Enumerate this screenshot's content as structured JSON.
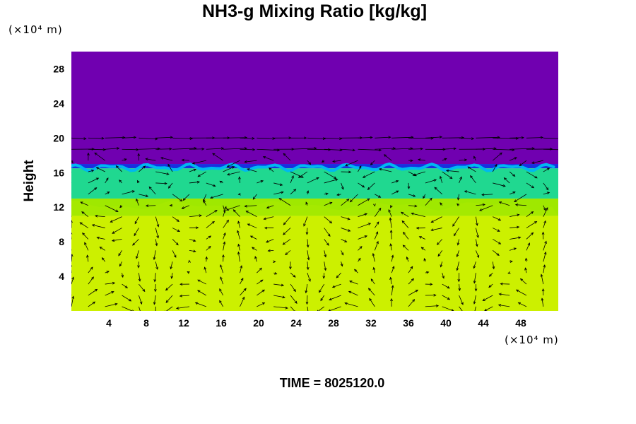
{
  "chart_data": {
    "type": "heatmap",
    "title": "NH3-g Mixing Ratio [kg/kg]",
    "ylabel": "Height",
    "x_unit": "(×10⁴ m)",
    "y_unit": "(×10⁴ m)",
    "xlim": [
      0,
      52
    ],
    "ylim": [
      0,
      30
    ],
    "x_ticks": [
      4,
      8,
      12,
      16,
      20,
      24,
      28,
      32,
      36,
      40,
      44,
      48
    ],
    "y_ticks": [
      4,
      8,
      12,
      16,
      20,
      24,
      28
    ],
    "overlay": "velocity vector arrows",
    "layers": [
      {
        "from_height": 0,
        "to_height": 11,
        "color": "#ccf000"
      },
      {
        "from_height": 11,
        "to_height": 13,
        "color": "#9fe800"
      },
      {
        "from_height": 13,
        "to_height": 16.5,
        "color": "#20d890"
      },
      {
        "from_height": 16.5,
        "to_height": 17,
        "color": "#1830e0"
      },
      {
        "from_height": 17,
        "to_height": 30,
        "color": "#7000b0"
      }
    ]
  },
  "footer": {
    "time_label": "TIME = 8025120.0"
  }
}
